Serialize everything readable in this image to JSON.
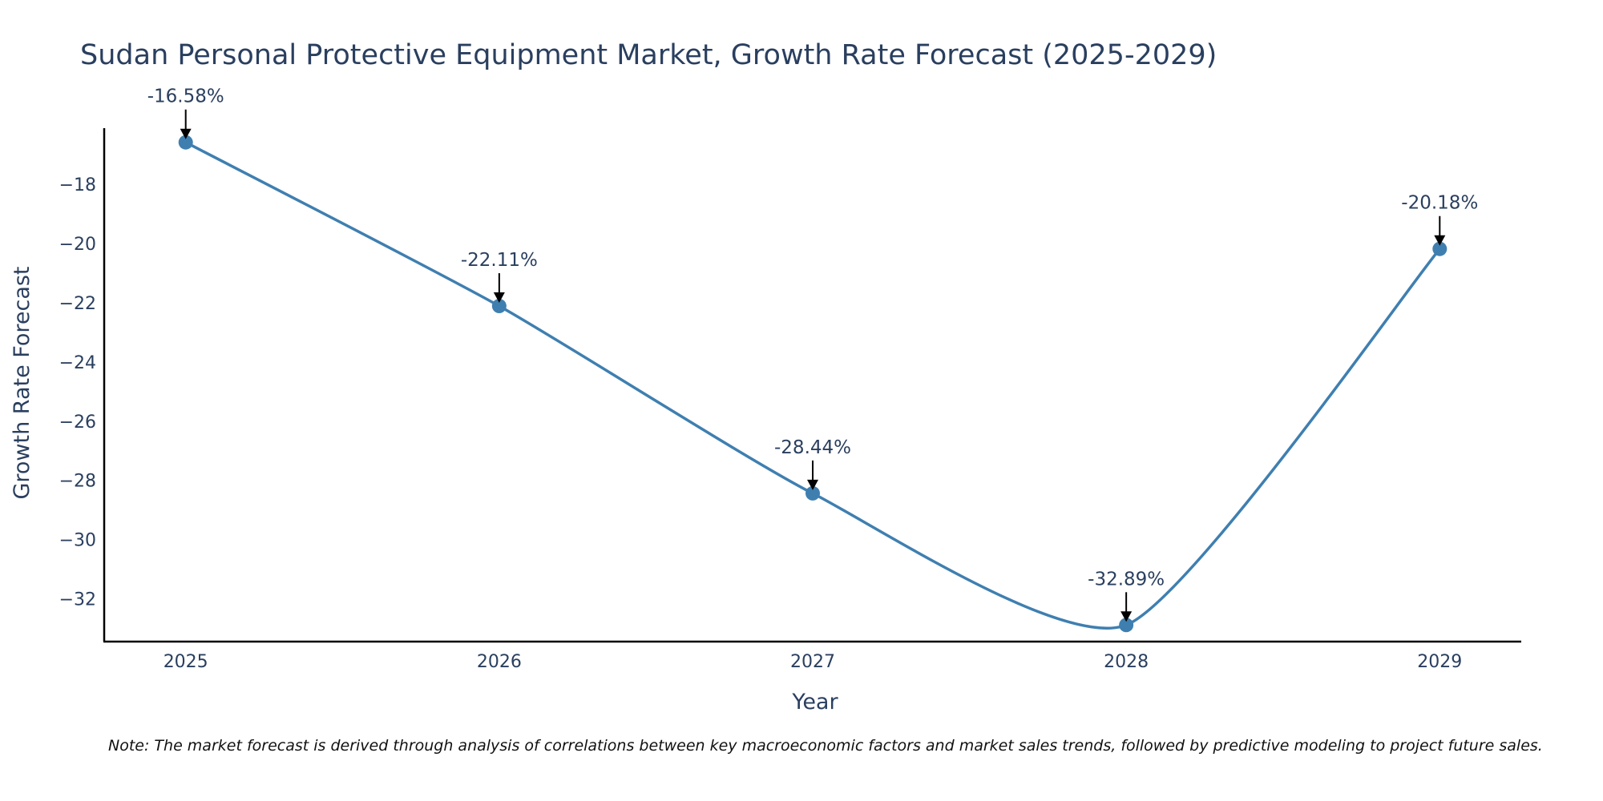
{
  "chart_data": {
    "type": "line",
    "title": "Sudan Personal Protective Equipment Market, Growth Rate Forecast (2025-2029)",
    "xlabel": "Year",
    "ylabel": "Growth Rate Forecast",
    "categories": [
      "2025",
      "2026",
      "2027",
      "2028",
      "2029"
    ],
    "values": [
      -16.58,
      -22.11,
      -28.44,
      -32.89,
      -20.18
    ],
    "data_labels": [
      "-16.58%",
      "-22.11%",
      "-28.44%",
      "-32.89%",
      "-20.18%"
    ],
    "yticks": [
      -18,
      -20,
      -22,
      -24,
      -26,
      -28,
      -30,
      -32
    ],
    "ytick_labels": [
      "−18",
      "−20",
      "−22",
      "−24",
      "−26",
      "−28",
      "−30",
      "−32"
    ],
    "ylim": [
      -33.45,
      -16.1
    ],
    "xlim": [
      2024.74,
      2029.26
    ],
    "line_shape": "spline",
    "grid": false,
    "line_color": "#3f7fb0",
    "marker_color": "#3f7fb0"
  },
  "note": "Note: The market forecast is derived through analysis of correlations between key macroeconomic factors and market sales trends, followed by predictive modeling to project future sales."
}
